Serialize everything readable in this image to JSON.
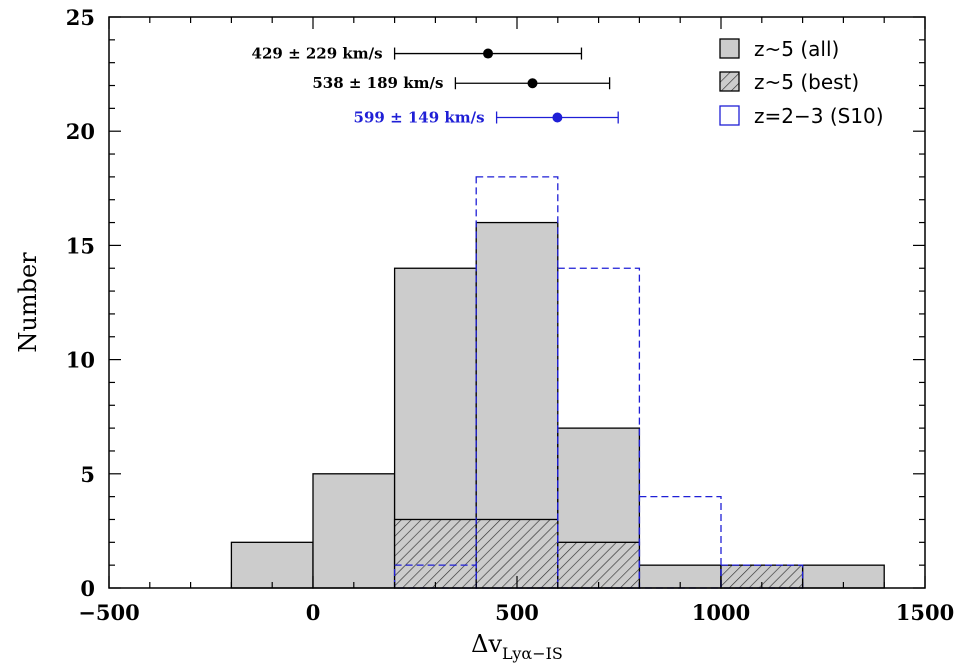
{
  "chart_data": {
    "type": "bar",
    "ylabel": "Number",
    "xlabel": {
      "main": "Δv",
      "subscript": "Lyα−IS"
    },
    "xlim": [
      -500,
      1500
    ],
    "ylim": [
      0,
      25
    ],
    "x_ticks": [
      "−500",
      "0",
      "500",
      "1000",
      "1500"
    ],
    "y_ticks": [
      "0",
      "5",
      "10",
      "15",
      "20",
      "25"
    ],
    "bin_edges": [
      -200,
      0,
      200,
      400,
      600,
      800,
      1000,
      1200,
      1400
    ],
    "series": [
      {
        "name": "z~5 (all)",
        "style": "filled",
        "color": "#cccccc",
        "values": [
          2,
          5,
          14,
          16,
          7,
          1,
          1,
          1
        ]
      },
      {
        "name": "z~5 (best)",
        "style": "hatched",
        "color": "#333333",
        "values": [
          0,
          0,
          3,
          3,
          2,
          0,
          1,
          0
        ]
      },
      {
        "name": "z=2−3 (S10)",
        "style": "dashed-outline",
        "color": "#1f1fd6",
        "values": [
          0,
          0,
          1,
          18,
          14,
          4,
          1,
          0
        ]
      }
    ],
    "legend_position": "top-right",
    "mean_annotations": [
      {
        "label": "429 ± 229 km/s",
        "x": 429,
        "x_low": 200,
        "x_high": 658,
        "y": 23.4,
        "color": "#000000"
      },
      {
        "label": "538 ± 189 km/s",
        "x": 538,
        "x_low": 349,
        "x_high": 727,
        "y": 22.1,
        "color": "#000000"
      },
      {
        "label": "599 ± 149 km/s",
        "x": 599,
        "x_low": 450,
        "x_high": 748,
        "y": 20.6,
        "color": "#1f1fd6"
      }
    ]
  }
}
